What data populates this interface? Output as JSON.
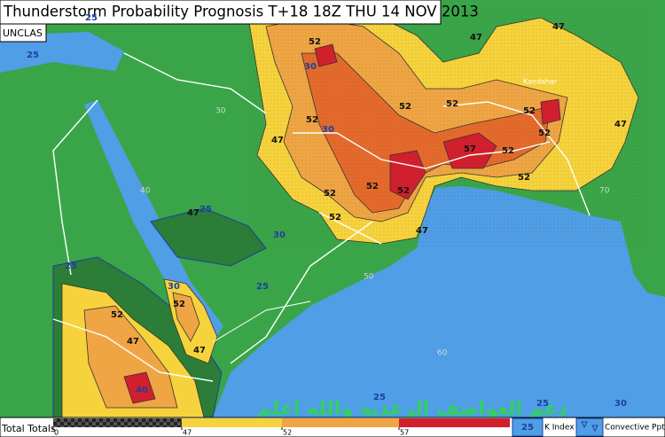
{
  "header": {
    "title": "Thunderstorm Probability Prognosis T+18 18Z THU 14 NOV 2013",
    "classification": "UNCLAS"
  },
  "map": {
    "contour_labels": [
      "52",
      "47",
      "47",
      "30",
      "52",
      "52",
      "30",
      "47",
      "52",
      "52",
      "52",
      "52",
      "52",
      "57",
      "47",
      "52",
      "52",
      "52",
      "52",
      "47",
      "47",
      "25",
      "30",
      "25",
      "30",
      "52",
      "47",
      "47",
      "52",
      "40",
      "25",
      "25",
      "25",
      "25",
      "25",
      "30"
    ],
    "grid_labels": [
      "30",
      "40",
      "50",
      "60",
      "70"
    ],
    "place_label": "Kandahar"
  },
  "legend": {
    "title": "Total Totals",
    "ticks": [
      0,
      47,
      52,
      57
    ],
    "k_index_label": "K Index",
    "k_index_value": "25",
    "convective_label": "Convective Pptn"
  },
  "watermark": "دعم العواصف الرعديه والله اعلم"
}
